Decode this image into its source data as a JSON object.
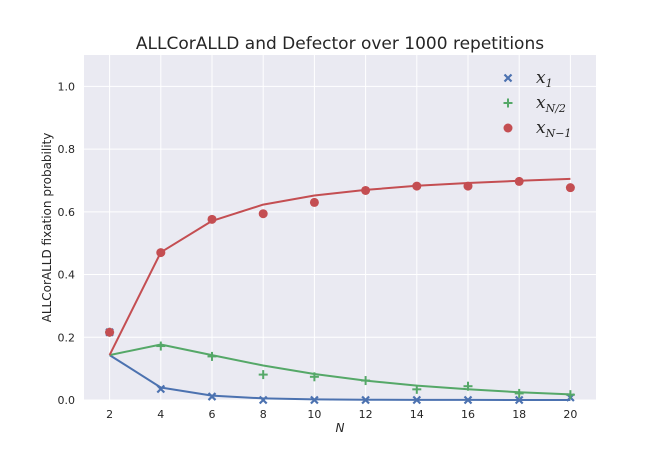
{
  "chart_data": {
    "type": "line",
    "title": "ALLCorALLD and Defector over 1000 repetitions",
    "xlabel": "N",
    "ylabel": "ALLCorALLD fixation probability",
    "xlim": [
      1,
      21
    ],
    "ylim": [
      0,
      1.1
    ],
    "xticks": [
      "2",
      "4",
      "6",
      "8",
      "10",
      "12",
      "14",
      "16",
      "18",
      "20"
    ],
    "yticks": [
      "0.0",
      "0.2",
      "0.4",
      "0.6",
      "0.8",
      "1.0"
    ],
    "x": [
      2,
      4,
      6,
      8,
      10,
      12,
      14,
      16,
      18,
      20
    ],
    "series": [
      {
        "name": "x1",
        "legend_main": "x",
        "legend_sub": "1",
        "marker": "x",
        "color": "#4c72b0",
        "line": [
          0.143,
          0.04,
          0.014,
          0.005,
          0.002,
          0.001,
          0.0004,
          0.0002,
          0.0001,
          5e-05
        ],
        "points": [
          0.216,
          0.035,
          0.011,
          0.0,
          0.0,
          0.0,
          0.0,
          0.0,
          0.0,
          0.008
        ]
      },
      {
        "name": "xN/2",
        "legend_main": "x",
        "legend_sub": "N/2",
        "marker": "+",
        "color": "#55a868",
        "line": [
          0.143,
          0.177,
          0.143,
          0.11,
          0.083,
          0.062,
          0.046,
          0.034,
          0.025,
          0.018
        ],
        "points": [
          0.216,
          0.172,
          0.139,
          0.081,
          0.074,
          0.062,
          0.034,
          0.044,
          0.021,
          0.017
        ]
      },
      {
        "name": "xN-1",
        "legend_main": "x",
        "legend_sub": "N−1",
        "marker": "o",
        "color": "#c44e52",
        "line": [
          0.143,
          0.471,
          0.571,
          0.623,
          0.652,
          0.67,
          0.683,
          0.692,
          0.699,
          0.705
        ],
        "points": [
          0.216,
          0.47,
          0.576,
          0.594,
          0.63,
          0.668,
          0.682,
          0.682,
          0.697,
          0.677
        ]
      }
    ]
  }
}
